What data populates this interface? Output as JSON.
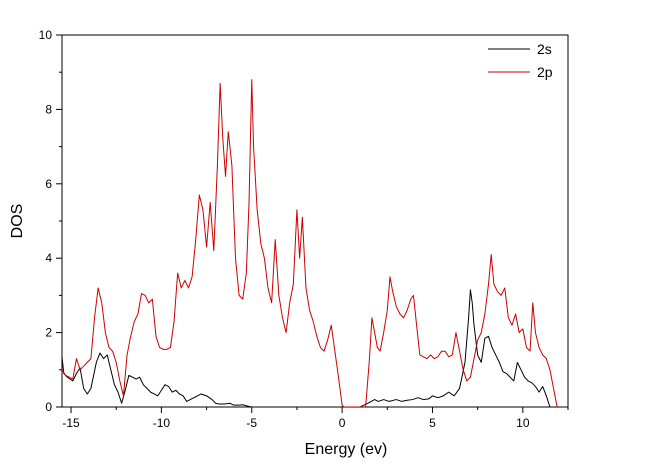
{
  "chart_data": {
    "type": "line",
    "xlabel": "Energy  (ev)",
    "ylabel": "DOS",
    "xlim": [
      -15.5,
      12.5
    ],
    "ylim": [
      0,
      10
    ],
    "x_ticks": [
      -15,
      -10,
      -5,
      0,
      5,
      10
    ],
    "y_ticks": [
      0,
      2,
      4,
      6,
      8,
      10
    ],
    "grid": false,
    "legend_position": "top-right",
    "series": [
      {
        "name": "2s",
        "color": "#000000",
        "points": [
          [
            -15.5,
            1.35
          ],
          [
            -15.4,
            0.9
          ],
          [
            -15.2,
            0.8
          ],
          [
            -14.9,
            0.7
          ],
          [
            -14.7,
            0.9
          ],
          [
            -14.5,
            1.05
          ],
          [
            -14.3,
            0.5
          ],
          [
            -14.1,
            0.35
          ],
          [
            -13.9,
            0.5
          ],
          [
            -13.6,
            1.2
          ],
          [
            -13.4,
            1.45
          ],
          [
            -13.2,
            1.3
          ],
          [
            -13.0,
            1.4
          ],
          [
            -12.8,
            1.0
          ],
          [
            -12.6,
            0.6
          ],
          [
            -12.4,
            0.4
          ],
          [
            -12.2,
            0.1
          ],
          [
            -12.0,
            0.45
          ],
          [
            -11.8,
            0.85
          ],
          [
            -11.6,
            0.8
          ],
          [
            -11.4,
            0.75
          ],
          [
            -11.2,
            0.8
          ],
          [
            -11.0,
            0.6
          ],
          [
            -10.8,
            0.5
          ],
          [
            -10.6,
            0.4
          ],
          [
            -10.4,
            0.35
          ],
          [
            -10.2,
            0.3
          ],
          [
            -10.0,
            0.45
          ],
          [
            -9.8,
            0.6
          ],
          [
            -9.6,
            0.55
          ],
          [
            -9.4,
            0.4
          ],
          [
            -9.2,
            0.45
          ],
          [
            -9.0,
            0.35
          ],
          [
            -8.8,
            0.3
          ],
          [
            -8.6,
            0.15
          ],
          [
            -8.4,
            0.2
          ],
          [
            -8.2,
            0.25
          ],
          [
            -8.0,
            0.3
          ],
          [
            -7.8,
            0.35
          ],
          [
            -7.5,
            0.3
          ],
          [
            -7.2,
            0.2
          ],
          [
            -7.0,
            0.1
          ],
          [
            -6.8,
            0.08
          ],
          [
            -6.5,
            0.08
          ],
          [
            -6.2,
            0.1
          ],
          [
            -6.0,
            0.05
          ],
          [
            -5.7,
            0.05
          ],
          [
            -5.5,
            0.06
          ],
          [
            -5.2,
            0.02
          ],
          [
            -5.0,
            0.0
          ],
          [
            1.0,
            0.0
          ],
          [
            1.5,
            0.12
          ],
          [
            1.8,
            0.2
          ],
          [
            2.0,
            0.15
          ],
          [
            2.3,
            0.2
          ],
          [
            2.6,
            0.15
          ],
          [
            3.0,
            0.2
          ],
          [
            3.3,
            0.15
          ],
          [
            3.6,
            0.18
          ],
          [
            3.9,
            0.2
          ],
          [
            4.2,
            0.25
          ],
          [
            4.5,
            0.2
          ],
          [
            4.8,
            0.22
          ],
          [
            5.0,
            0.3
          ],
          [
            5.3,
            0.25
          ],
          [
            5.6,
            0.3
          ],
          [
            5.9,
            0.4
          ],
          [
            6.2,
            0.3
          ],
          [
            6.5,
            0.5
          ],
          [
            6.8,
            1.2
          ],
          [
            7.0,
            2.4
          ],
          [
            7.1,
            3.15
          ],
          [
            7.2,
            2.8
          ],
          [
            7.3,
            2.2
          ],
          [
            7.5,
            1.4
          ],
          [
            7.7,
            1.2
          ],
          [
            7.9,
            1.85
          ],
          [
            8.1,
            1.9
          ],
          [
            8.3,
            1.6
          ],
          [
            8.5,
            1.4
          ],
          [
            8.7,
            1.2
          ],
          [
            8.9,
            0.95
          ],
          [
            9.1,
            0.9
          ],
          [
            9.3,
            0.8
          ],
          [
            9.5,
            0.7
          ],
          [
            9.7,
            1.2
          ],
          [
            9.9,
            1.0
          ],
          [
            10.1,
            0.8
          ],
          [
            10.3,
            0.7
          ],
          [
            10.5,
            0.65
          ],
          [
            10.7,
            0.55
          ],
          [
            10.9,
            0.4
          ],
          [
            11.1,
            0.55
          ],
          [
            11.3,
            0.3
          ],
          [
            11.5,
            0.0
          ]
        ]
      },
      {
        "name": "2p",
        "color": "#cc0000",
        "points": [
          [
            -15.5,
            1.0
          ],
          [
            -15.3,
            0.85
          ],
          [
            -15.1,
            0.8
          ],
          [
            -14.9,
            0.75
          ],
          [
            -14.7,
            1.3
          ],
          [
            -14.5,
            1.0
          ],
          [
            -14.3,
            1.1
          ],
          [
            -14.1,
            1.2
          ],
          [
            -13.9,
            1.3
          ],
          [
            -13.7,
            2.4
          ],
          [
            -13.5,
            3.2
          ],
          [
            -13.3,
            2.8
          ],
          [
            -13.1,
            2.0
          ],
          [
            -12.9,
            1.6
          ],
          [
            -12.7,
            1.5
          ],
          [
            -12.5,
            1.2
          ],
          [
            -12.3,
            0.7
          ],
          [
            -12.1,
            0.3
          ],
          [
            -11.9,
            1.4
          ],
          [
            -11.7,
            1.9
          ],
          [
            -11.5,
            2.3
          ],
          [
            -11.3,
            2.5
          ],
          [
            -11.1,
            3.05
          ],
          [
            -10.9,
            3.0
          ],
          [
            -10.7,
            2.8
          ],
          [
            -10.5,
            2.9
          ],
          [
            -10.3,
            1.9
          ],
          [
            -10.1,
            1.6
          ],
          [
            -9.9,
            1.55
          ],
          [
            -9.7,
            1.55
          ],
          [
            -9.5,
            1.6
          ],
          [
            -9.3,
            2.3
          ],
          [
            -9.1,
            3.6
          ],
          [
            -8.9,
            3.2
          ],
          [
            -8.7,
            3.4
          ],
          [
            -8.5,
            3.2
          ],
          [
            -8.3,
            3.5
          ],
          [
            -8.1,
            4.5
          ],
          [
            -7.9,
            5.7
          ],
          [
            -7.7,
            5.3
          ],
          [
            -7.5,
            4.3
          ],
          [
            -7.3,
            5.5
          ],
          [
            -7.1,
            4.2
          ],
          [
            -6.9,
            6.5
          ],
          [
            -6.75,
            8.7
          ],
          [
            -6.6,
            7.2
          ],
          [
            -6.45,
            6.2
          ],
          [
            -6.3,
            7.4
          ],
          [
            -6.1,
            6.5
          ],
          [
            -5.9,
            4.0
          ],
          [
            -5.7,
            3.0
          ],
          [
            -5.5,
            2.9
          ],
          [
            -5.3,
            3.6
          ],
          [
            -5.15,
            5.5
          ],
          [
            -5.0,
            8.8
          ],
          [
            -4.9,
            7.0
          ],
          [
            -4.7,
            5.3
          ],
          [
            -4.5,
            4.4
          ],
          [
            -4.3,
            4.0
          ],
          [
            -4.1,
            3.2
          ],
          [
            -3.9,
            2.8
          ],
          [
            -3.7,
            4.5
          ],
          [
            -3.5,
            3.0
          ],
          [
            -3.3,
            2.4
          ],
          [
            -3.1,
            2.0
          ],
          [
            -2.9,
            2.8
          ],
          [
            -2.7,
            3.3
          ],
          [
            -2.5,
            5.3
          ],
          [
            -2.35,
            4.0
          ],
          [
            -2.2,
            5.1
          ],
          [
            -2.0,
            3.2
          ],
          [
            -1.8,
            2.6
          ],
          [
            -1.6,
            2.3
          ],
          [
            -1.4,
            1.9
          ],
          [
            -1.2,
            1.6
          ],
          [
            -1.0,
            1.5
          ],
          [
            -0.8,
            1.8
          ],
          [
            -0.6,
            2.2
          ],
          [
            -0.4,
            1.5
          ],
          [
            -0.2,
            0.8
          ],
          [
            0.0,
            0.05
          ],
          [
            0.1,
            0.0
          ],
          [
            1.3,
            0.0
          ],
          [
            1.5,
            1.2
          ],
          [
            1.65,
            2.4
          ],
          [
            1.8,
            2.0
          ],
          [
            1.95,
            1.6
          ],
          [
            2.1,
            1.5
          ],
          [
            2.3,
            2.0
          ],
          [
            2.5,
            2.6
          ],
          [
            2.65,
            3.5
          ],
          [
            2.8,
            3.1
          ],
          [
            3.0,
            2.7
          ],
          [
            3.2,
            2.5
          ],
          [
            3.4,
            2.4
          ],
          [
            3.6,
            2.6
          ],
          [
            3.8,
            2.9
          ],
          [
            3.95,
            3.0
          ],
          [
            4.1,
            2.3
          ],
          [
            4.3,
            1.4
          ],
          [
            4.5,
            1.35
          ],
          [
            4.7,
            1.3
          ],
          [
            4.9,
            1.4
          ],
          [
            5.1,
            1.3
          ],
          [
            5.3,
            1.35
          ],
          [
            5.5,
            1.5
          ],
          [
            5.7,
            1.5
          ],
          [
            5.9,
            1.35
          ],
          [
            6.1,
            1.4
          ],
          [
            6.3,
            2.0
          ],
          [
            6.5,
            1.5
          ],
          [
            6.7,
            1.0
          ],
          [
            6.9,
            0.7
          ],
          [
            7.1,
            0.8
          ],
          [
            7.3,
            1.3
          ],
          [
            7.5,
            1.8
          ],
          [
            7.7,
            2.0
          ],
          [
            7.9,
            2.5
          ],
          [
            8.1,
            3.3
          ],
          [
            8.25,
            4.1
          ],
          [
            8.4,
            3.3
          ],
          [
            8.6,
            3.1
          ],
          [
            8.8,
            3.0
          ],
          [
            9.0,
            3.2
          ],
          [
            9.2,
            2.4
          ],
          [
            9.4,
            2.2
          ],
          [
            9.6,
            2.5
          ],
          [
            9.8,
            2.0
          ],
          [
            10.0,
            2.1
          ],
          [
            10.2,
            1.6
          ],
          [
            10.4,
            1.5
          ],
          [
            10.55,
            2.8
          ],
          [
            10.7,
            2.0
          ],
          [
            10.9,
            1.6
          ],
          [
            11.1,
            1.4
          ],
          [
            11.3,
            1.3
          ],
          [
            11.5,
            1.0
          ],
          [
            11.7,
            0.5
          ],
          [
            11.9,
            0.0
          ]
        ]
      }
    ]
  }
}
